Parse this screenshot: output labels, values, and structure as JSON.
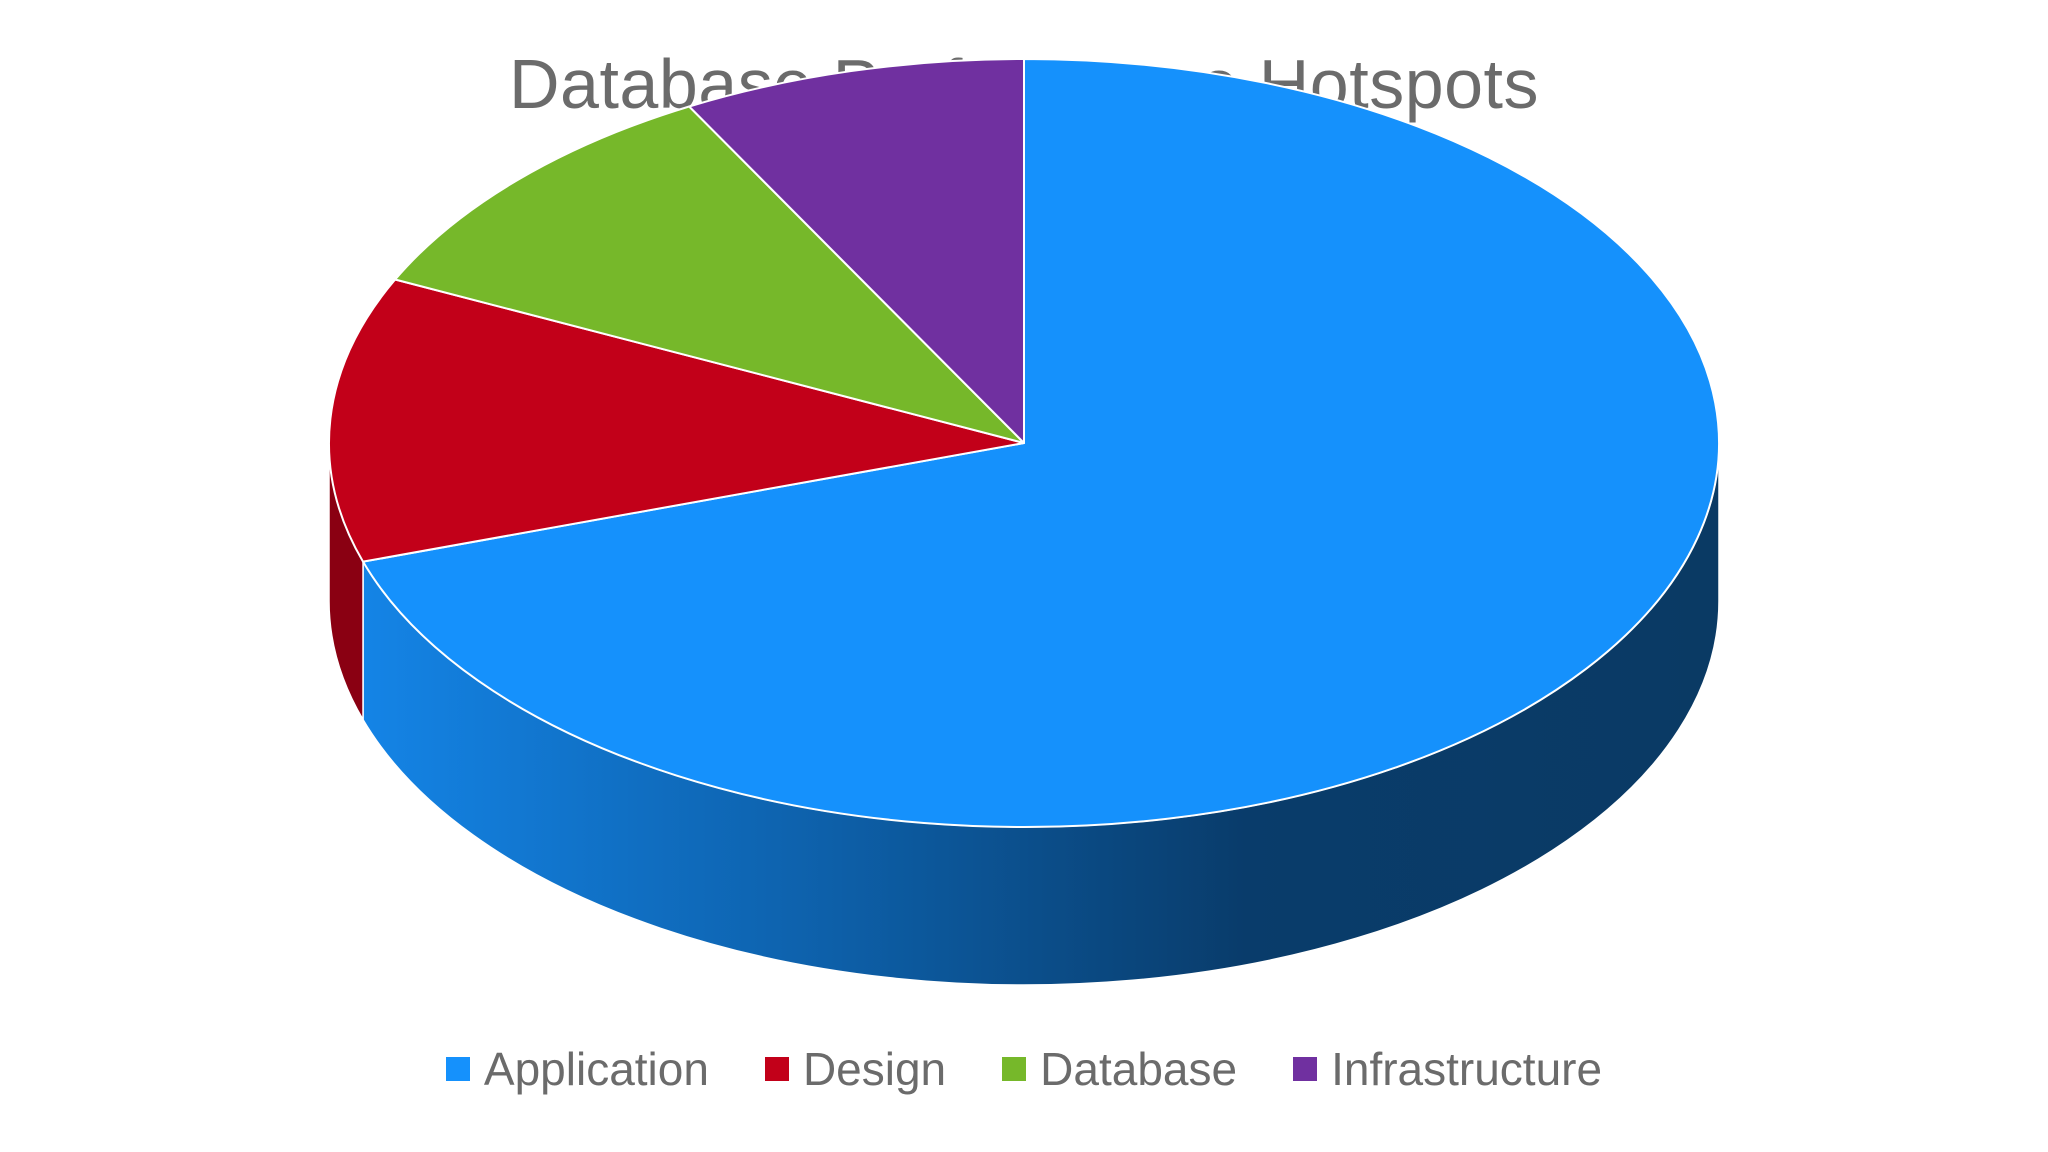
{
  "chart_data": {
    "type": "pie",
    "variant": "3d",
    "title": "Database Performance Hotspots",
    "categories": [
      "Application",
      "Design",
      "Database",
      "Infrastructure"
    ],
    "values": [
      70,
      12,
      10,
      8
    ],
    "unit": "%",
    "colors": [
      "#1591fc",
      "#c20019",
      "#76b82a",
      "#7030a0"
    ],
    "side_colors": [
      "#0a4f8e",
      "#8a0012",
      "#4f7d1b",
      "#4b2070"
    ],
    "legend_position": "bottom"
  }
}
